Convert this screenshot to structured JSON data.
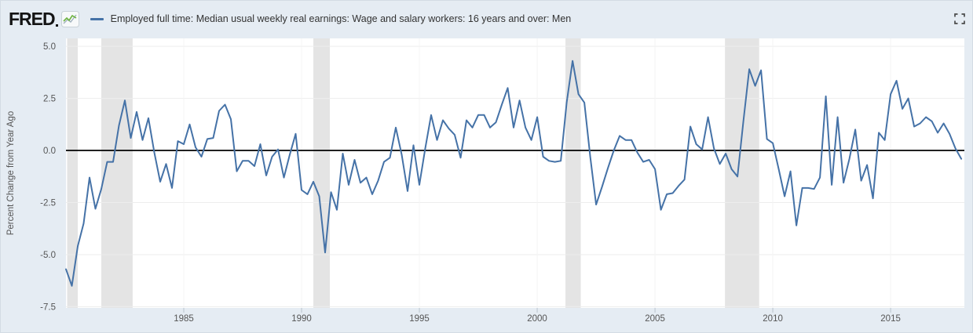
{
  "header": {
    "logo_text": "FRED",
    "legend_label": "Employed full time: Median usual weekly real earnings: Wage and salary workers: 16 years and over: Men",
    "fullscreen_icon": "expand-corners"
  },
  "colors": {
    "line": "#4572a7",
    "recession_band": "#e4e4e4",
    "background": "#e5ecf3",
    "plot_background": "#ffffff",
    "zero_line": "#000000",
    "grid_horizontal": "#ededed",
    "grid_vertical": "#f4f4f4",
    "tick_mark": "#b9c3cc",
    "tick_text": "#555555",
    "legend_text": "#333333",
    "icon_gray": "#4a4a4a"
  },
  "chart_data": {
    "type": "line",
    "title": "Employed full time: Median usual weekly real earnings: Wage and salary workers: 16 years and over: Men",
    "ylabel": "Percent Change from Year Ago",
    "xlabel": "",
    "x_range": [
      1980.0,
      2018.13
    ],
    "y_range": [
      -7.56,
      5.38
    ],
    "x_ticks": [
      1985,
      1990,
      1995,
      2000,
      2005,
      2010,
      2015
    ],
    "y_ticks": [
      5.0,
      2.5,
      0.0,
      -2.5,
      -5.0,
      -7.5
    ],
    "y_tick_labels": [
      "5.0",
      "2.5",
      "0.0",
      "-2.5",
      "-5.0",
      "-7.5"
    ],
    "grid": true,
    "zero_line": 0,
    "legend_position": "top",
    "recessions": [
      [
        1980.05,
        1980.5
      ],
      [
        1981.5,
        1982.83
      ],
      [
        1990.5,
        1991.2
      ],
      [
        2001.2,
        2001.85
      ],
      [
        2007.97,
        2009.42
      ]
    ],
    "series": [
      {
        "name": "Employed full time: Median usual weekly real earnings: Wage and salary workers: 16 years and over: Men",
        "frequency": "quarterly",
        "x_start": 1980.0,
        "x_step": 0.25,
        "values": [
          -5.7,
          -6.5,
          -4.6,
          -3.5,
          -1.3,
          -2.8,
          -1.85,
          -0.55,
          -0.55,
          1.2,
          2.4,
          0.6,
          1.85,
          0.5,
          1.55,
          -0.1,
          -1.5,
          -0.65,
          -1.8,
          0.45,
          0.3,
          1.25,
          0.15,
          -0.3,
          0.55,
          0.6,
          1.9,
          2.2,
          1.5,
          -1.0,
          -0.5,
          -0.5,
          -0.75,
          0.3,
          -1.2,
          -0.3,
          0.05,
          -1.3,
          -0.2,
          0.8,
          -1.9,
          -2.1,
          -1.5,
          -2.2,
          -4.9,
          -2.0,
          -2.85,
          -0.15,
          -1.65,
          -0.45,
          -1.55,
          -1.3,
          -2.1,
          -1.45,
          -0.55,
          -0.35,
          1.1,
          -0.2,
          -1.95,
          0.25,
          -1.65,
          0.1,
          1.7,
          0.5,
          1.45,
          1.05,
          0.75,
          -0.35,
          1.45,
          1.1,
          1.7,
          1.7,
          1.1,
          1.35,
          2.2,
          3.0,
          1.1,
          2.4,
          1.1,
          0.5,
          1.6,
          -0.3,
          -0.5,
          -0.55,
          -0.5,
          2.3,
          4.3,
          2.7,
          2.3,
          -0.3,
          -2.6,
          -1.75,
          -0.85,
          0.0,
          0.7,
          0.5,
          0.5,
          -0.1,
          -0.55,
          -0.45,
          -0.9,
          -2.85,
          -2.1,
          -2.05,
          -1.7,
          -1.4,
          1.15,
          0.3,
          0.05,
          1.6,
          0.1,
          -0.65,
          -0.15,
          -0.9,
          -1.25,
          1.4,
          3.9,
          3.1,
          3.85,
          0.55,
          0.35,
          -0.9,
          -2.2,
          -1.0,
          -3.6,
          -1.8,
          -1.8,
          -1.85,
          -1.3,
          2.6,
          -1.65,
          1.6,
          -1.55,
          -0.4,
          1.0,
          -1.45,
          -0.7,
          -2.3,
          0.85,
          0.5,
          2.7,
          3.35,
          2.0,
          2.5,
          1.15,
          1.3,
          1.6,
          1.4,
          0.85,
          1.3,
          0.8,
          0.1,
          -0.4
        ]
      }
    ]
  }
}
